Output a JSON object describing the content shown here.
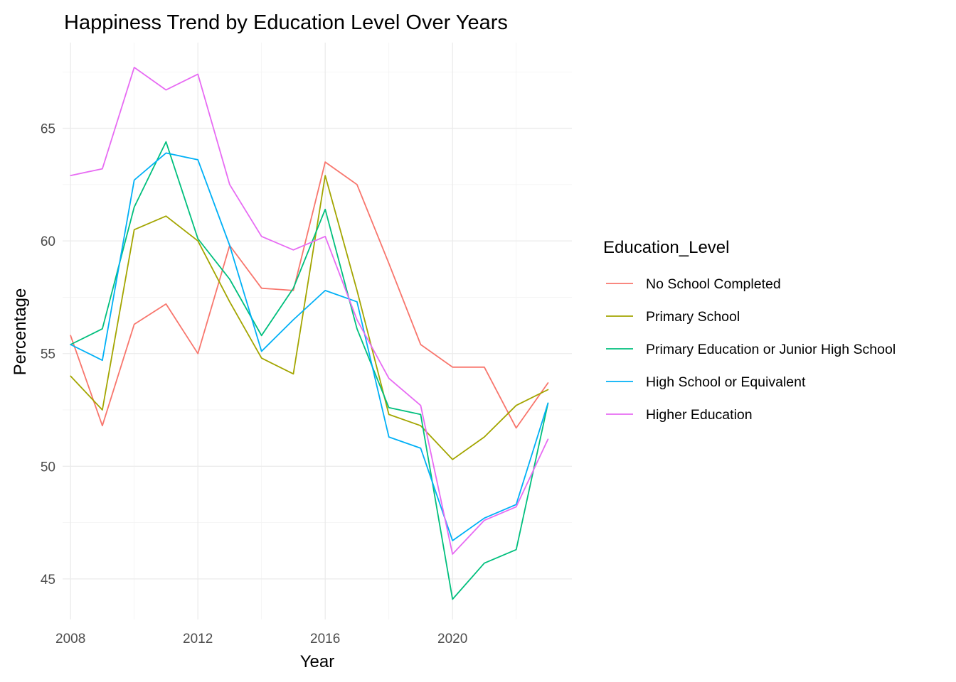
{
  "chart_data": {
    "type": "line",
    "title": "Happiness Trend by Education Level Over Years",
    "xlabel": "Year",
    "ylabel": "Percentage",
    "xlim": [
      2007.75,
      2023.75
    ],
    "ylim": [
      43.2,
      68.8
    ],
    "x_ticks": [
      2008,
      2012,
      2016,
      2020
    ],
    "x_tick_labels": [
      "2008",
      "2012",
      "2016",
      "2020"
    ],
    "y_ticks": [
      45,
      50,
      55,
      60,
      65
    ],
    "y_tick_labels": [
      "45",
      "50",
      "55",
      "60",
      "65"
    ],
    "grid": true,
    "legend_title": "Education_Level",
    "legend_position": "right",
    "x": [
      2008,
      2009,
      2010,
      2011,
      2012,
      2013,
      2014,
      2015,
      2016,
      2017,
      2018,
      2019,
      2020,
      2021,
      2022,
      2023
    ],
    "series": [
      {
        "name": "No School Completed",
        "color": "#F8766D",
        "values": [
          55.8,
          51.8,
          56.3,
          57.2,
          55.0,
          59.8,
          57.9,
          57.8,
          63.5,
          62.5,
          59.0,
          55.4,
          54.4,
          54.4,
          51.7,
          53.7
        ]
      },
      {
        "name": "Primary School",
        "color": "#A3A500",
        "values": [
          54.0,
          52.5,
          60.5,
          61.1,
          60.0,
          57.3,
          54.8,
          54.1,
          62.9,
          57.8,
          52.3,
          51.8,
          50.3,
          51.3,
          52.7,
          53.4
        ]
      },
      {
        "name": "Primary Education or Junior High School",
        "color": "#00BF7D",
        "values": [
          55.4,
          56.1,
          61.5,
          64.4,
          60.1,
          58.3,
          55.8,
          57.9,
          61.4,
          56.1,
          52.6,
          52.3,
          44.1,
          45.7,
          46.3,
          52.8
        ]
      },
      {
        "name": "High School or Equivalent",
        "color": "#00B0F6",
        "values": [
          55.4,
          54.7,
          62.7,
          63.9,
          63.6,
          59.8,
          55.1,
          56.5,
          57.8,
          57.3,
          51.3,
          50.8,
          46.7,
          47.7,
          48.3,
          52.8
        ]
      },
      {
        "name": "Higher Education",
        "color": "#E76BF3",
        "values": [
          62.9,
          63.2,
          67.7,
          66.7,
          67.4,
          62.5,
          60.2,
          59.6,
          60.2,
          56.5,
          53.9,
          52.7,
          46.1,
          47.6,
          48.2,
          51.2
        ]
      }
    ]
  }
}
